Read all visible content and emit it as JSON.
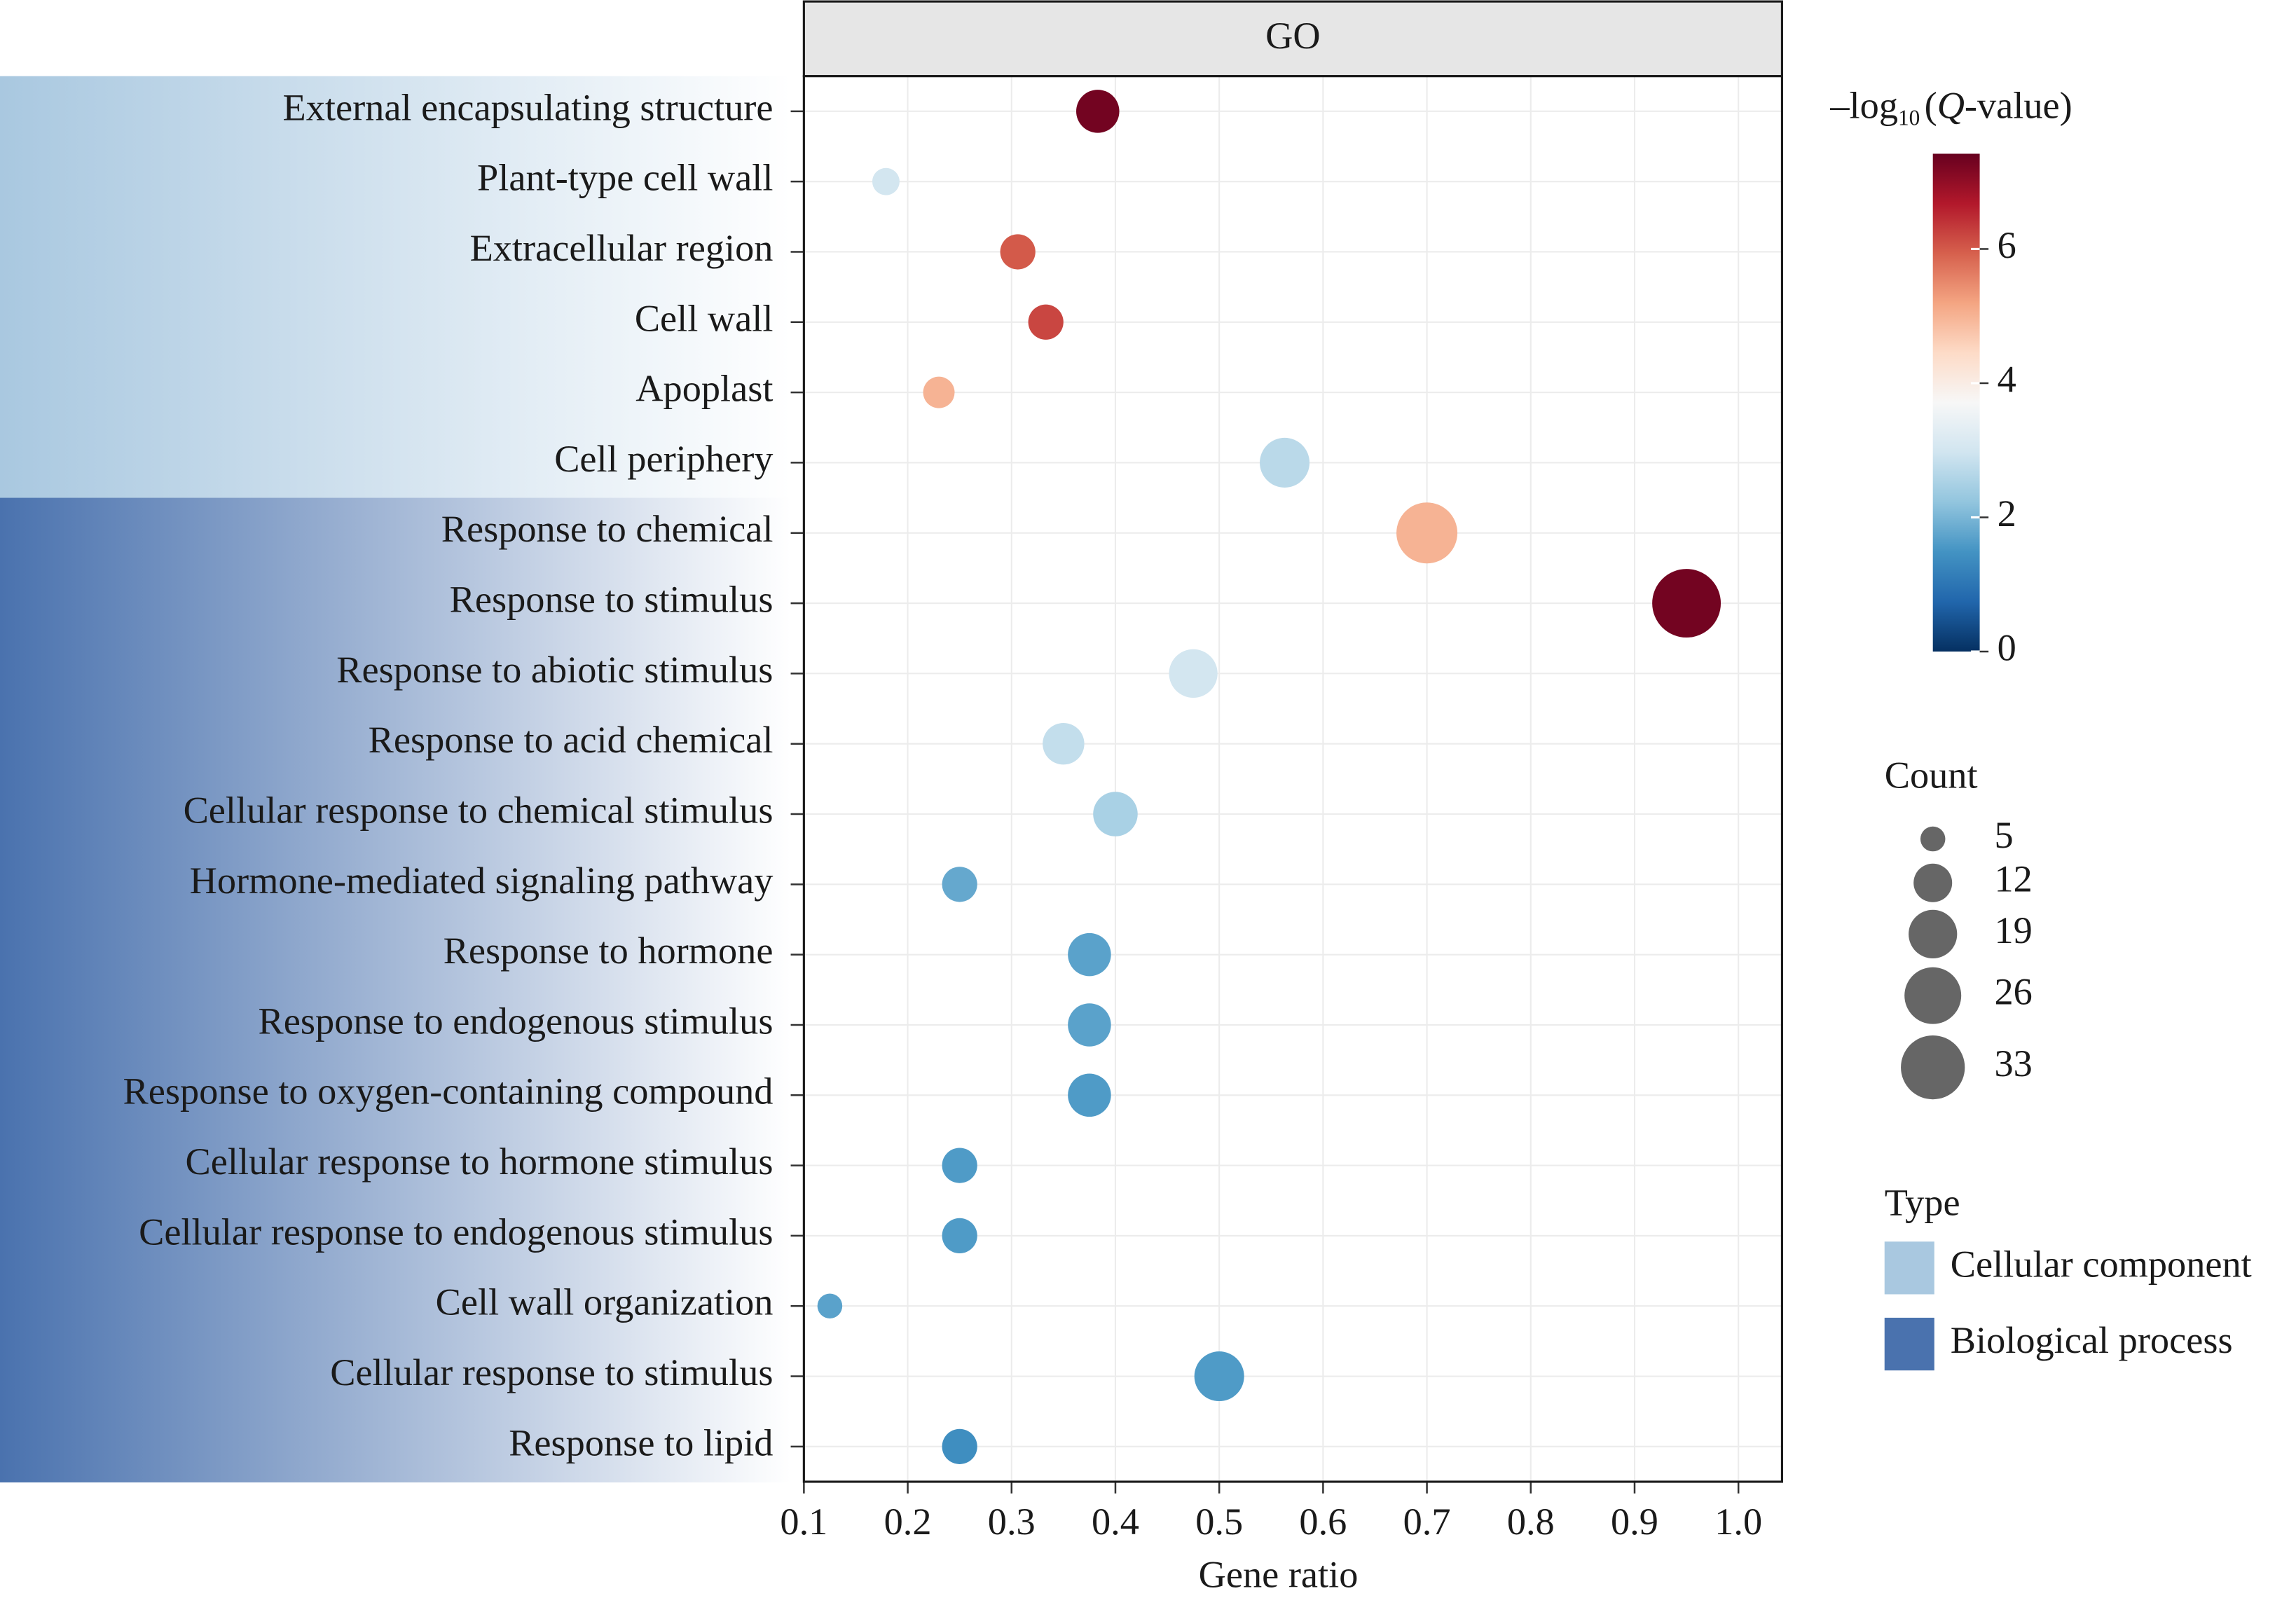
{
  "chart_data": {
    "type": "scatter",
    "panel_title": "GO",
    "categories": [
      "External encapsulating structure",
      "Plant-type cell wall",
      "Extracellular region",
      "Cell wall",
      "Apoplast",
      "Cell periphery",
      "Response to chemical",
      "Response to stimulus",
      "Response to abiotic stimulus",
      "Response to acid chemical",
      "Cellular response to chemical stimulus",
      "Hormone-mediated signaling pathway",
      "Response to hormone",
      "Response to endogenous stimulus",
      "Response to oxygen-containing compound",
      "Cellular response to hormone stimulus",
      "Cellular response to endogenous stimulus",
      "Cell wall organization",
      "Cellular response to stimulus",
      "Response to lipid"
    ],
    "category_types": [
      "Cellular component",
      "Cellular component",
      "Cellular component",
      "Cellular component",
      "Cellular component",
      "Cellular component",
      "Biological process",
      "Biological process",
      "Biological process",
      "Biological process",
      "Biological process",
      "Biological process",
      "Biological process",
      "Biological process",
      "Biological process",
      "Biological process",
      "Biological process",
      "Biological process",
      "Biological process",
      "Biological process"
    ],
    "x": [
      0.383,
      0.179,
      0.306,
      0.333,
      0.23,
      0.563,
      0.7,
      0.95,
      0.475,
      0.35,
      0.4,
      0.25,
      0.375,
      0.375,
      0.375,
      0.25,
      0.25,
      0.125,
      0.5,
      0.25
    ],
    "q_values": [
      7.3,
      3.0,
      6.0,
      6.2,
      5.0,
      2.7,
      5.0,
      7.3,
      3.0,
      2.8,
      2.5,
      1.8,
      1.7,
      1.7,
      1.6,
      1.6,
      1.6,
      1.7,
      1.6,
      1.4
    ],
    "counts": [
      15,
      6,
      10,
      10,
      8,
      20,
      30,
      38,
      19,
      14,
      16,
      10,
      15,
      15,
      15,
      10,
      10,
      5,
      20,
      10
    ],
    "xlabel": "Gene ratio",
    "xlim": [
      0.1,
      1.042
    ],
    "xticks": [
      0.1,
      0.2,
      0.3,
      0.4,
      0.5,
      0.6,
      0.7,
      0.8,
      0.9,
      {
        "value": 1,
        "label": "1.0"
      }
    ],
    "grid": true,
    "colorbar": {
      "title": [
        "–log",
        "10",
        "(",
        "Q",
        "-value)"
      ],
      "lim": [
        0,
        7.42
      ],
      "ticks": [
        0,
        2,
        4,
        6
      ],
      "colorscale": [
        "#053061",
        "#2166ac",
        "#4393c3",
        "#92c5de",
        "#d1e5f0",
        "#f7f7f7",
        "#fddbc7",
        "#f4a582",
        "#d6604d",
        "#b2182b",
        "#67001f"
      ]
    },
    "size_legend": {
      "title": "Count",
      "values": [
        5,
        12,
        19,
        26,
        33
      ]
    },
    "type_legend": {
      "title": "Type",
      "items": [
        {
          "name": "Cellular component",
          "color": "#a9c8e0"
        },
        {
          "name": "Biological process",
          "color": "#4a72ae"
        }
      ]
    }
  }
}
